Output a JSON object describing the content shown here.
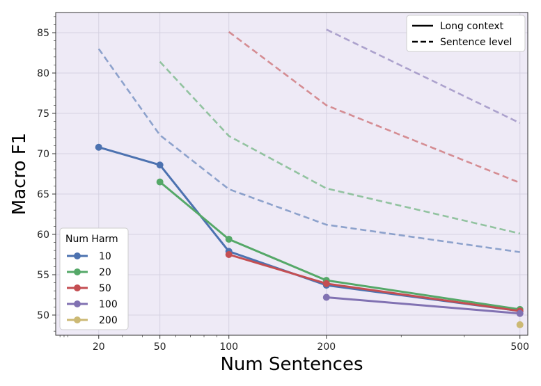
{
  "chart_data": {
    "type": "line",
    "xlabel": "Num Sentences",
    "ylabel": "Macro F1",
    "x_scale": "sqrt",
    "xlim": [
      7,
      515
    ],
    "ylim": [
      47.5,
      87.5
    ],
    "x_ticks": [
      20,
      50,
      100,
      200,
      500
    ],
    "y_ticks": [
      50,
      55,
      60,
      65,
      70,
      75,
      80,
      85
    ],
    "grid": true,
    "series": [
      {
        "name": "10",
        "style": "Long context",
        "color": "#4c72b0",
        "points": [
          [
            20,
            70.8
          ],
          [
            50,
            68.6
          ],
          [
            100,
            57.9
          ],
          [
            200,
            53.7
          ],
          [
            500,
            50.5
          ]
        ]
      },
      {
        "name": "20",
        "style": "Long context",
        "color": "#55a868",
        "points": [
          [
            50,
            66.5
          ],
          [
            100,
            59.4
          ],
          [
            200,
            54.3
          ],
          [
            500,
            50.7
          ]
        ]
      },
      {
        "name": "50",
        "style": "Long context",
        "color": "#c44e52",
        "points": [
          [
            100,
            57.5
          ],
          [
            200,
            53.9
          ],
          [
            500,
            50.5
          ]
        ]
      },
      {
        "name": "100",
        "style": "Long context",
        "color": "#8172b2",
        "points": [
          [
            200,
            52.2
          ],
          [
            500,
            50.2
          ]
        ]
      },
      {
        "name": "200",
        "style": "Long context",
        "color": "#ccb974",
        "points": [
          [
            500,
            48.8
          ]
        ]
      },
      {
        "name": "10",
        "style": "Sentence level",
        "color": "#4c72b0",
        "points": [
          [
            20,
            83.0
          ],
          [
            50,
            72.3
          ],
          [
            100,
            65.6
          ],
          [
            200,
            61.2
          ],
          [
            500,
            57.8
          ]
        ]
      },
      {
        "name": "20",
        "style": "Sentence level",
        "color": "#55a868",
        "points": [
          [
            50,
            81.4
          ],
          [
            100,
            72.2
          ],
          [
            200,
            65.7
          ],
          [
            500,
            60.1
          ]
        ]
      },
      {
        "name": "50",
        "style": "Sentence level",
        "color": "#c44e52",
        "points": [
          [
            100,
            85.1
          ],
          [
            200,
            76.0
          ],
          [
            500,
            66.4
          ]
        ]
      },
      {
        "name": "100",
        "style": "Sentence level",
        "color": "#8172b2",
        "points": [
          [
            200,
            85.4
          ],
          [
            500,
            73.8
          ]
        ]
      }
    ],
    "legend_style": {
      "location": "top-right",
      "entries": [
        {
          "label": "Long context",
          "dash": "solid"
        },
        {
          "label": "Sentence level",
          "dash": "dashed"
        }
      ]
    },
    "legend_color": {
      "location": "bottom-left",
      "title": "Num Harm",
      "entries": [
        {
          "label": "10",
          "color": "#4c72b0"
        },
        {
          "label": "20",
          "color": "#55a868"
        },
        {
          "label": "50",
          "color": "#c44e52"
        },
        {
          "label": "100",
          "color": "#8172b2"
        },
        {
          "label": "200",
          "color": "#ccb974"
        }
      ]
    }
  }
}
